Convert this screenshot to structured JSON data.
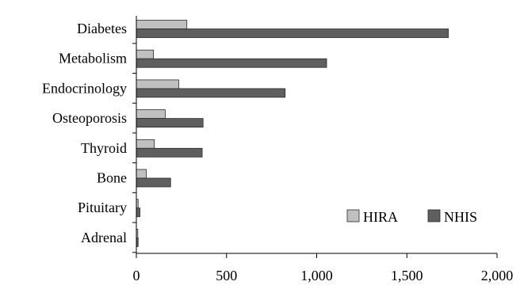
{
  "chart_data": {
    "type": "bar",
    "orientation": "horizontal",
    "categories": [
      "Diabetes",
      "Metabolism",
      "Endocrinology",
      "Osteoporosis",
      "Thyroid",
      "Bone",
      "Pituitary",
      "Adrenal"
    ],
    "series": [
      {
        "name": "HIRA",
        "color": "#c0c0c0",
        "values": [
          280,
          95,
          235,
          160,
          100,
          55,
          10,
          8
        ]
      },
      {
        "name": "NHIS",
        "color": "#5f5f5f",
        "values": [
          1730,
          1055,
          825,
          370,
          365,
          190,
          20,
          10
        ]
      }
    ],
    "xlim": [
      0,
      2000
    ],
    "xticks": [
      0,
      500,
      1000,
      1500,
      2000
    ],
    "xtick_labels": [
      "0",
      "500",
      "1,000",
      "1,500",
      "2,000"
    ],
    "xlabel": "",
    "ylabel": "",
    "title": "",
    "grid": false,
    "legend_position": "bottom-right"
  }
}
